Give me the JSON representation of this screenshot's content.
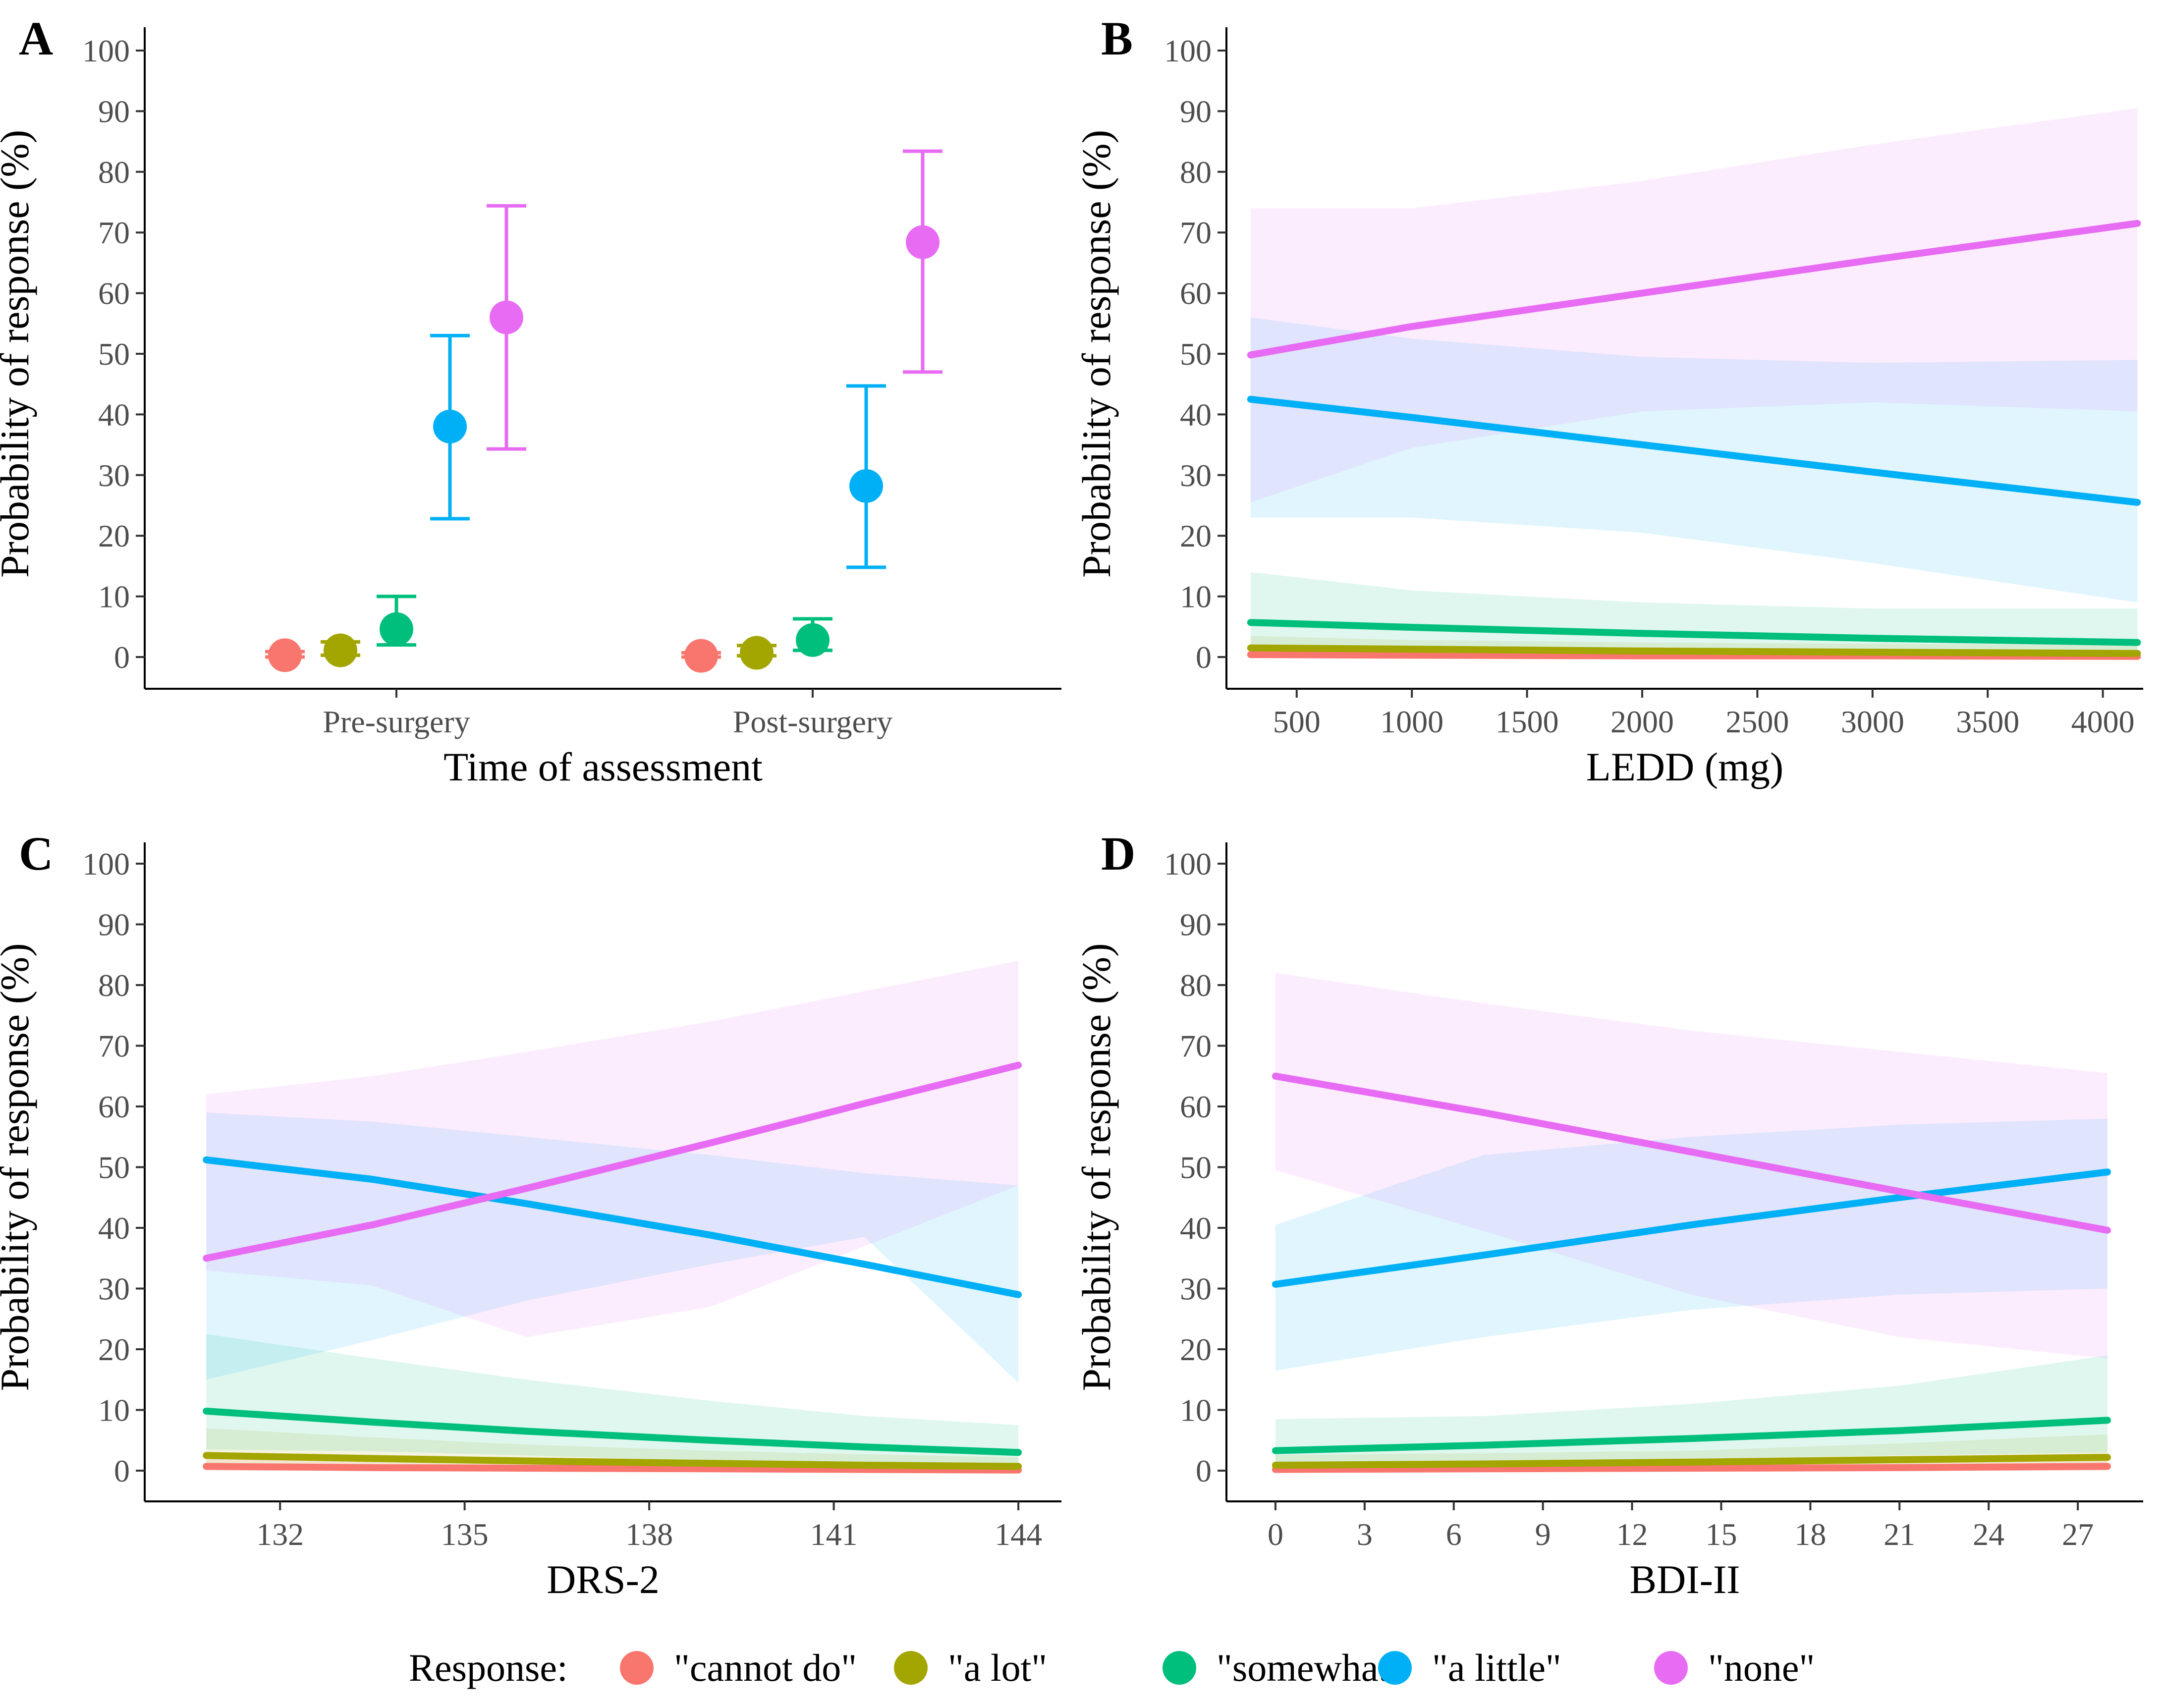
{
  "colors": {
    "cannot_do": "#F8766D",
    "a_lot": "#A3A500",
    "somewhat": "#00BF7D",
    "a_little": "#00B0F6",
    "none": "#E76BF3"
  },
  "legend": {
    "title": "Response:",
    "items": [
      {
        "label": "\"cannot do\"",
        "color": "#F8766D"
      },
      {
        "label": "\"a lot\"",
        "color": "#A3A500"
      },
      {
        "label": "\"somewhat\"",
        "color": "#00BF7D"
      },
      {
        "label": "\"a little\"",
        "color": "#00B0F6"
      },
      {
        "label": "\"none\"",
        "color": "#E76BF3"
      }
    ]
  },
  "chart_data": [
    {
      "panel": "A",
      "type": "scatter",
      "xlabel": "Time of assessment",
      "ylabel": "Probability of response (%)",
      "ylim": [
        0,
        100
      ],
      "yticks": [
        0,
        10,
        20,
        30,
        40,
        50,
        60,
        70,
        80,
        90,
        100
      ],
      "categories": [
        "Pre-surgery",
        "Post-surgery"
      ],
      "series": [
        {
          "name": "\"cannot do\"",
          "values": [
            0.3,
            0.2
          ],
          "lower": [
            0.0,
            0.0
          ],
          "upper": [
            0.9,
            0.7
          ]
        },
        {
          "name": "\"a lot\"",
          "values": [
            1.1,
            0.7
          ],
          "lower": [
            0.3,
            0.2
          ],
          "upper": [
            2.5,
            1.9
          ]
        },
        {
          "name": "\"somewhat\"",
          "values": [
            4.6,
            2.8
          ],
          "lower": [
            2.0,
            1.1
          ],
          "upper": [
            10.0,
            6.3
          ]
        },
        {
          "name": "\"a little\"",
          "values": [
            38.0,
            28.2
          ],
          "lower": [
            22.8,
            14.8
          ],
          "upper": [
            53.0,
            44.7
          ]
        },
        {
          "name": "\"none\"",
          "values": [
            56.0,
            68.4
          ],
          "lower": [
            34.3,
            47.0
          ],
          "upper": [
            74.4,
            83.4
          ]
        }
      ]
    },
    {
      "panel": "B",
      "type": "line",
      "xlabel": "LEDD (mg)",
      "ylabel": "Probability of response (%)",
      "ylim": [
        0,
        100
      ],
      "yticks": [
        0,
        10,
        20,
        30,
        40,
        50,
        60,
        70,
        80,
        90,
        100
      ],
      "xlim": [
        300,
        4150
      ],
      "xticks": [
        500,
        1000,
        1500,
        2000,
        2500,
        3000,
        3500,
        4000
      ],
      "x": [
        300,
        1000,
        2000,
        3000,
        4150
      ],
      "series": [
        {
          "name": "\"cannot do\"",
          "values": [
            0.4,
            0.3,
            0.2,
            0.2,
            0.1
          ],
          "lower": [
            0.0,
            0.0,
            0.0,
            0.0,
            0.0
          ],
          "upper": [
            1.2,
            0.9,
            0.7,
            0.6,
            0.6
          ]
        },
        {
          "name": "\"a lot\"",
          "values": [
            1.5,
            1.3,
            1.0,
            0.8,
            0.6
          ],
          "lower": [
            0.5,
            0.4,
            0.2,
            0.1,
            0.0
          ],
          "upper": [
            3.5,
            2.8,
            2.4,
            2.2,
            2.0
          ]
        },
        {
          "name": "\"somewhat\"",
          "values": [
            5.7,
            4.9,
            3.9,
            3.1,
            2.4
          ],
          "lower": [
            2.0,
            1.8,
            1.2,
            0.7,
            0.3
          ],
          "upper": [
            14.0,
            11.0,
            9.0,
            8.0,
            8.0
          ]
        },
        {
          "name": "\"a little\"",
          "values": [
            42.5,
            39.5,
            35.0,
            30.5,
            25.5
          ],
          "lower": [
            23.0,
            23.0,
            20.5,
            15.5,
            9.0
          ],
          "upper": [
            56.0,
            52.5,
            49.5,
            48.5,
            49.0
          ]
        },
        {
          "name": "\"none\"",
          "values": [
            49.8,
            54.5,
            60.0,
            65.5,
            71.5
          ],
          "lower": [
            25.5,
            34.5,
            40.5,
            42.0,
            40.5
          ],
          "upper": [
            74.0,
            74.0,
            78.5,
            84.5,
            90.5
          ]
        }
      ]
    },
    {
      "panel": "C",
      "type": "line",
      "xlabel": "DRS-2",
      "ylabel": "Probability of response (%)",
      "ylim": [
        0,
        100
      ],
      "yticks": [
        0,
        10,
        20,
        30,
        40,
        50,
        60,
        70,
        80,
        90,
        100
      ],
      "xlim": [
        130.8,
        144
      ],
      "xticks": [
        132,
        135,
        138,
        141,
        144
      ],
      "x": [
        130.8,
        133.5,
        136,
        139,
        141.5,
        144
      ],
      "series": [
        {
          "name": "\"cannot do\"",
          "values": [
            0.7,
            0.5,
            0.4,
            0.3,
            0.2,
            0.1
          ],
          "lower": [
            0.0,
            0.0,
            0.0,
            0.0,
            0.0,
            0.0
          ],
          "upper": [
            2.5,
            1.8,
            1.3,
            1.0,
            0.8,
            0.6
          ]
        },
        {
          "name": "\"a lot\"",
          "values": [
            2.5,
            2.0,
            1.6,
            1.2,
            0.9,
            0.7
          ],
          "lower": [
            0.6,
            0.4,
            0.3,
            0.2,
            0.1,
            0.0
          ],
          "upper": [
            7.0,
            5.5,
            4.3,
            3.3,
            2.7,
            2.2
          ]
        },
        {
          "name": "\"somewhat\"",
          "values": [
            9.8,
            8.0,
            6.5,
            5.0,
            3.9,
            3.0
          ],
          "lower": [
            3.5,
            3.2,
            2.5,
            1.6,
            0.9,
            0.5
          ],
          "upper": [
            22.5,
            18.5,
            15.0,
            11.5,
            9.0,
            7.5
          ]
        },
        {
          "name": "\"a little\"",
          "values": [
            51.2,
            48.0,
            44.0,
            38.8,
            34.0,
            29.0
          ],
          "lower": [
            15.0,
            21.5,
            28.0,
            34.0,
            38.5,
            14.5
          ],
          "upper": [
            59.0,
            57.5,
            55.0,
            52.0,
            49.0,
            47.0
          ]
        },
        {
          "name": "\"none\"",
          "values": [
            35.0,
            40.5,
            46.5,
            54.0,
            60.5,
            66.8
          ],
          "lower": [
            33.0,
            30.5,
            22.0,
            27.0,
            37.0,
            47.0
          ],
          "upper": [
            62.0,
            65.0,
            69.0,
            74.0,
            79.0,
            84.0
          ]
        }
      ]
    },
    {
      "panel": "D",
      "type": "line",
      "xlabel": "BDI-II",
      "ylabel": "Probability of response (%)",
      "ylim": [
        0,
        100
      ],
      "yticks": [
        0,
        10,
        20,
        30,
        40,
        50,
        60,
        70,
        80,
        90,
        100
      ],
      "xlim": [
        0,
        28
      ],
      "xticks": [
        0,
        3,
        6,
        9,
        12,
        15,
        18,
        21,
        24,
        27
      ],
      "x": [
        0,
        7,
        14,
        21,
        28
      ],
      "series": [
        {
          "name": "\"cannot do\"",
          "values": [
            0.2,
            0.3,
            0.4,
            0.5,
            0.7
          ],
          "lower": [
            0.0,
            0.0,
            0.0,
            0.0,
            0.0
          ],
          "upper": [
            0.6,
            0.8,
            1.0,
            1.5,
            2.2
          ]
        },
        {
          "name": "\"a lot\"",
          "values": [
            0.9,
            1.1,
            1.4,
            1.8,
            2.2
          ],
          "lower": [
            0.2,
            0.3,
            0.4,
            0.5,
            0.6
          ],
          "upper": [
            2.6,
            2.9,
            3.3,
            4.5,
            6.0
          ]
        },
        {
          "name": "\"somewhat\"",
          "values": [
            3.3,
            4.2,
            5.3,
            6.6,
            8.3
          ],
          "lower": [
            1.0,
            1.5,
            2.0,
            2.5,
            3.0
          ],
          "upper": [
            8.5,
            9.0,
            11.0,
            14.0,
            19.0
          ]
        },
        {
          "name": "\"a little\"",
          "values": [
            30.7,
            35.5,
            40.5,
            45.0,
            49.2
          ],
          "lower": [
            16.5,
            22.0,
            26.5,
            29.0,
            30.0
          ],
          "upper": [
            40.5,
            52.0,
            55.0,
            57.0,
            58.0
          ]
        },
        {
          "name": "\"none\"",
          "values": [
            65.0,
            59.0,
            52.5,
            46.0,
            39.6
          ],
          "lower": [
            49.5,
            39.5,
            29.0,
            22.0,
            18.5
          ],
          "upper": [
            82.0,
            77.0,
            72.5,
            69.0,
            65.5
          ]
        }
      ]
    }
  ]
}
